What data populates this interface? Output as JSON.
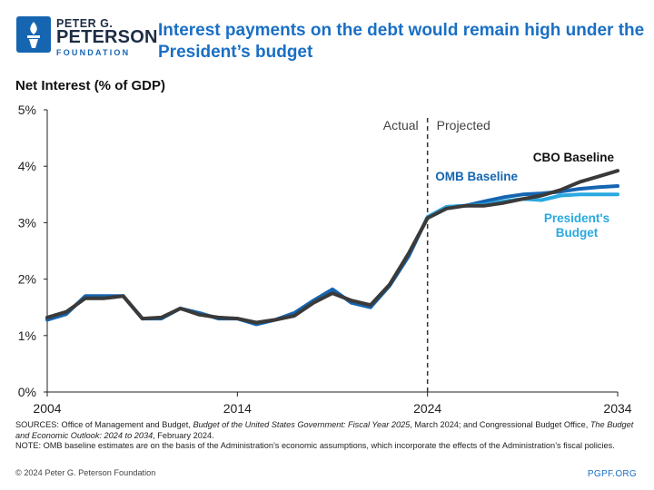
{
  "logo": {
    "line1": "PETER G.",
    "line2": "PETERSON",
    "line3": "FOUNDATION"
  },
  "title": "Interest payments on the debt would remain high under the President’s budget",
  "footnote": {
    "sources_label": "SOURCES: ",
    "sources_a": "Office of Management and Budget, ",
    "sources_b_italic": "Budget of the United States Government: Fiscal Year 2025",
    "sources_c": ", March 2024; and Congressional Budget Office, ",
    "sources_d_italic": "The Budget and Economic Outlook: 2024 to 2034",
    "sources_e": ", February 2024.",
    "note": "NOTE: OMB baseline estimates are on the basis of the Administration’s economic assumptions, which incorporate the effects of the Administration’s fiscal policies."
  },
  "copyright": "© 2024 Peter G. Peterson Foundation",
  "site": "PGPF.ORG",
  "chart_data": {
    "type": "line",
    "ylabel": "Net Interest (% of GDP)",
    "xlim": [
      2004,
      2034
    ],
    "ylim": [
      0,
      5
    ],
    "xticks": [
      2004,
      2014,
      2024,
      2034
    ],
    "yticks": [
      0,
      1,
      2,
      3,
      4,
      5
    ],
    "ytick_labels": [
      "0%",
      "1%",
      "2%",
      "3%",
      "4%",
      "5%"
    ],
    "grid": false,
    "divider": {
      "x": 2024,
      "left_label": "Actual",
      "right_label": "Projected"
    },
    "series": [
      {
        "name": "OMB Baseline",
        "color": "#1565b0",
        "x": [
          2004,
          2005,
          2006,
          2007,
          2008,
          2009,
          2010,
          2011,
          2012,
          2013,
          2014,
          2015,
          2016,
          2017,
          2018,
          2019,
          2020,
          2021,
          2022,
          2023,
          2024,
          2025,
          2026,
          2027,
          2028,
          2029,
          2030,
          2031,
          2032,
          2033,
          2034
        ],
        "y": [
          1.28,
          1.38,
          1.7,
          1.7,
          1.7,
          1.3,
          1.3,
          1.48,
          1.4,
          1.3,
          1.3,
          1.2,
          1.28,
          1.4,
          1.62,
          1.82,
          1.58,
          1.5,
          1.88,
          2.4,
          3.1,
          3.28,
          3.3,
          3.38,
          3.45,
          3.5,
          3.52,
          3.55,
          3.6,
          3.63,
          3.65
        ]
      },
      {
        "name": "President's Budget",
        "color": "#29a9e0",
        "x": [
          2024,
          2025,
          2026,
          2027,
          2028,
          2029,
          2030,
          2031,
          2032,
          2033,
          2034
        ],
        "y": [
          3.1,
          3.28,
          3.3,
          3.32,
          3.38,
          3.42,
          3.4,
          3.48,
          3.5,
          3.5,
          3.5
        ]
      },
      {
        "name": "CBO Baseline",
        "color": "#3a3a3a",
        "x": [
          2004,
          2005,
          2006,
          2007,
          2008,
          2009,
          2010,
          2011,
          2012,
          2013,
          2014,
          2015,
          2016,
          2017,
          2018,
          2019,
          2020,
          2021,
          2022,
          2023,
          2024,
          2025,
          2026,
          2027,
          2028,
          2029,
          2030,
          2031,
          2032,
          2033,
          2034
        ],
        "y": [
          1.32,
          1.42,
          1.66,
          1.66,
          1.7,
          1.3,
          1.32,
          1.48,
          1.37,
          1.32,
          1.3,
          1.23,
          1.28,
          1.35,
          1.58,
          1.75,
          1.62,
          1.54,
          1.9,
          2.45,
          3.08,
          3.25,
          3.3,
          3.3,
          3.35,
          3.42,
          3.48,
          3.58,
          3.72,
          3.82,
          3.92
        ]
      }
    ],
    "annotations": [
      {
        "text": "CBO Baseline",
        "color": "#111111"
      },
      {
        "text": "OMB Baseline",
        "color": "#1565b0"
      },
      {
        "text": "President's",
        "color": "#29a9e0"
      },
      {
        "text": "Budget",
        "color": "#29a9e0"
      }
    ]
  }
}
